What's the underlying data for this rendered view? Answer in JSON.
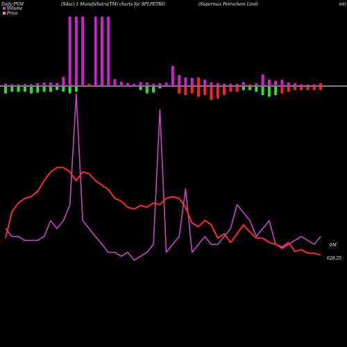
{
  "header": {
    "left_title": "Daily PVM",
    "center_title": "(Sdac) 1 MunafaSutra(TM) charts for SPLPETRO",
    "right_title": "(Supermax Petrochem Limit",
    "right_edge_text": "ed)"
  },
  "legend": [
    {
      "label": "Volume",
      "color": "#cc33cc"
    },
    {
      "label": "Price",
      "color": "#e8a020"
    }
  ],
  "colors": {
    "background": "#000000",
    "volume_up": "#cc22cc",
    "volume_down": "#ff2020",
    "pvm_positive": "#30e030",
    "price_line": "#ff2a2a",
    "volume_line": "#cc44cc",
    "baseline": "#ffffff"
  },
  "chart_data": {
    "type": "bar",
    "series": [
      {
        "name": "Volume",
        "values": [
          8,
          6,
          6,
          7,
          6,
          10,
          12,
          12,
          10,
          32,
          240,
          240,
          240,
          8,
          240,
          240,
          240,
          24,
          15,
          10,
          8,
          14,
          12,
          8,
          10,
          12,
          70,
          38,
          30,
          28,
          30,
          22,
          12,
          10,
          8,
          8,
          8,
          14,
          6,
          10,
          40,
          22,
          18,
          22,
          12,
          10,
          6,
          5,
          6,
          10
        ],
        "colors": [
          "up",
          "up",
          "up",
          "up",
          "up",
          "up",
          "up",
          "up",
          "up",
          "up",
          "up",
          "up",
          "up",
          "down",
          "up",
          "up",
          "up",
          "up",
          "up",
          "up",
          "up",
          "up",
          "up",
          "up",
          "up",
          "up",
          "up",
          "up",
          "up",
          "up",
          "down",
          "up",
          "up",
          "up",
          "up",
          "up",
          "up",
          "up",
          "down",
          "up",
          "up",
          "up",
          "up",
          "up",
          "up",
          "up",
          "up",
          "up",
          "up",
          "down"
        ]
      },
      {
        "name": "Price",
        "values": [
          -8,
          -6,
          -6,
          -6,
          -8,
          -7,
          -6,
          -6,
          -4,
          -6,
          -8,
          -6,
          0,
          0,
          0,
          0,
          0,
          0,
          0,
          0,
          0,
          -4,
          -8,
          -7,
          -2,
          0,
          0,
          -8,
          -10,
          -8,
          -12,
          -10,
          -16,
          -14,
          -10,
          -6,
          -6,
          -4,
          -4,
          -6,
          -10,
          -12,
          -10,
          -8,
          -6,
          -4,
          -4,
          -4,
          -4,
          -4
        ],
        "colors": [
          "green",
          "green",
          "green",
          "green",
          "green",
          "green",
          "green",
          "green",
          "green",
          "green",
          "green",
          "green",
          "none",
          "none",
          "none",
          "none",
          "none",
          "none",
          "none",
          "none",
          "none",
          "green",
          "green",
          "green",
          "green",
          "none",
          "none",
          "red",
          "red",
          "red",
          "red",
          "red",
          "red",
          "red",
          "red",
          "red",
          "red",
          "green",
          "green",
          "green",
          "green",
          "green",
          "green",
          "red",
          "red",
          "red",
          "red",
          "red",
          "red",
          "red"
        ]
      },
      {
        "name": "price_line",
        "values": [
          625,
          655,
          665,
          670,
          672,
          678,
          690,
          700,
          705,
          705,
          700,
          690,
          700,
          698,
          690,
          685,
          680,
          670,
          667,
          660,
          658,
          662,
          660,
          665,
          663,
          670,
          672,
          670,
          660,
          642,
          638,
          645,
          640,
          625,
          630,
          620,
          630,
          640,
          632,
          625,
          625,
          620,
          618,
          615,
          620,
          610,
          612,
          608,
          608,
          606
        ],
        "color": "#ff2a2a"
      },
      {
        "name": "volume_line",
        "values": [
          630,
          620,
          620,
          615,
          615,
          615,
          620,
          640,
          630,
          640,
          660,
          800,
          640,
          630,
          620,
          610,
          600,
          600,
          595,
          600,
          590,
          595,
          600,
          610,
          780,
          600,
          610,
          620,
          680,
          600,
          610,
          620,
          610,
          610,
          620,
          630,
          660,
          650,
          640,
          620,
          630,
          640,
          610,
          605,
          610,
          615,
          620,
          615,
          610,
          620
        ],
        "color": "#cc44cc"
      }
    ],
    "price_label": "628.25",
    "volume_label": "0M"
  }
}
